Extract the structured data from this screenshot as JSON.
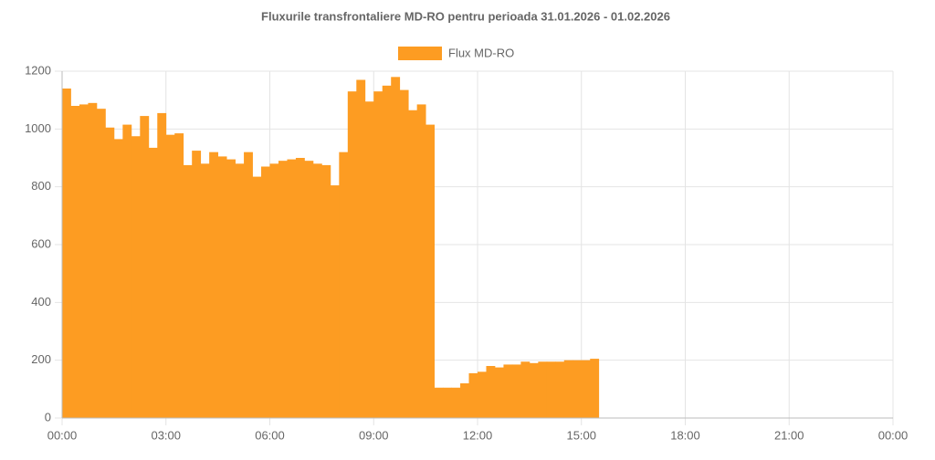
{
  "chart_data": {
    "type": "bar",
    "title": "Fluxurile transfrontaliere MD-RO pentru perioada 31.01.2026 - 01.02.2026",
    "x": [
      0,
      0.25,
      0.5,
      0.75,
      1,
      1.25,
      1.5,
      1.75,
      2,
      2.25,
      2.5,
      2.75,
      3,
      3.25,
      3.5,
      3.75,
      4,
      4.25,
      4.5,
      4.75,
      5,
      5.25,
      5.5,
      5.75,
      6,
      6.25,
      6.5,
      6.75,
      7,
      7.25,
      7.5,
      7.75,
      8,
      8.25,
      8.5,
      8.75,
      9,
      9.25,
      9.5,
      9.75,
      10,
      10.25,
      10.5,
      10.75,
      11,
      11.25,
      11.5,
      11.75,
      12,
      12.25,
      12.5,
      12.75,
      13,
      13.25,
      13.5,
      13.75,
      14,
      14.25,
      14.5,
      14.75,
      15,
      15.25
    ],
    "series": [
      {
        "name": "Flux MD-RO",
        "color": "#fd9c22",
        "values": [
          1140,
          1080,
          1085,
          1090,
          1070,
          1005,
          965,
          1015,
          975,
          1045,
          935,
          1055,
          980,
          985,
          875,
          925,
          880,
          920,
          905,
          895,
          880,
          920,
          835,
          870,
          880,
          890,
          895,
          900,
          890,
          880,
          875,
          805,
          920,
          1130,
          1170,
          1095,
          1130,
          1150,
          1180,
          1135,
          1065,
          1085,
          1015,
          105,
          105,
          105,
          120,
          155,
          160,
          180,
          175,
          185,
          185,
          195,
          190,
          195,
          195,
          195,
          200,
          200,
          200,
          205
        ]
      }
    ],
    "xlim": [
      0,
      24
    ],
    "xticks": [
      {
        "value": 0,
        "label": "00:00"
      },
      {
        "value": 3,
        "label": "03:00"
      },
      {
        "value": 6,
        "label": "06:00"
      },
      {
        "value": 9,
        "label": "09:00"
      },
      {
        "value": 12,
        "label": "12:00"
      },
      {
        "value": 15,
        "label": "15:00"
      },
      {
        "value": 18,
        "label": "18:00"
      },
      {
        "value": 21,
        "label": "21:00"
      },
      {
        "value": 24,
        "label": "00:00"
      }
    ],
    "ylim": [
      0,
      1200
    ],
    "yticks": [
      0,
      200,
      400,
      600,
      800,
      1000,
      1200
    ],
    "grid": true
  }
}
